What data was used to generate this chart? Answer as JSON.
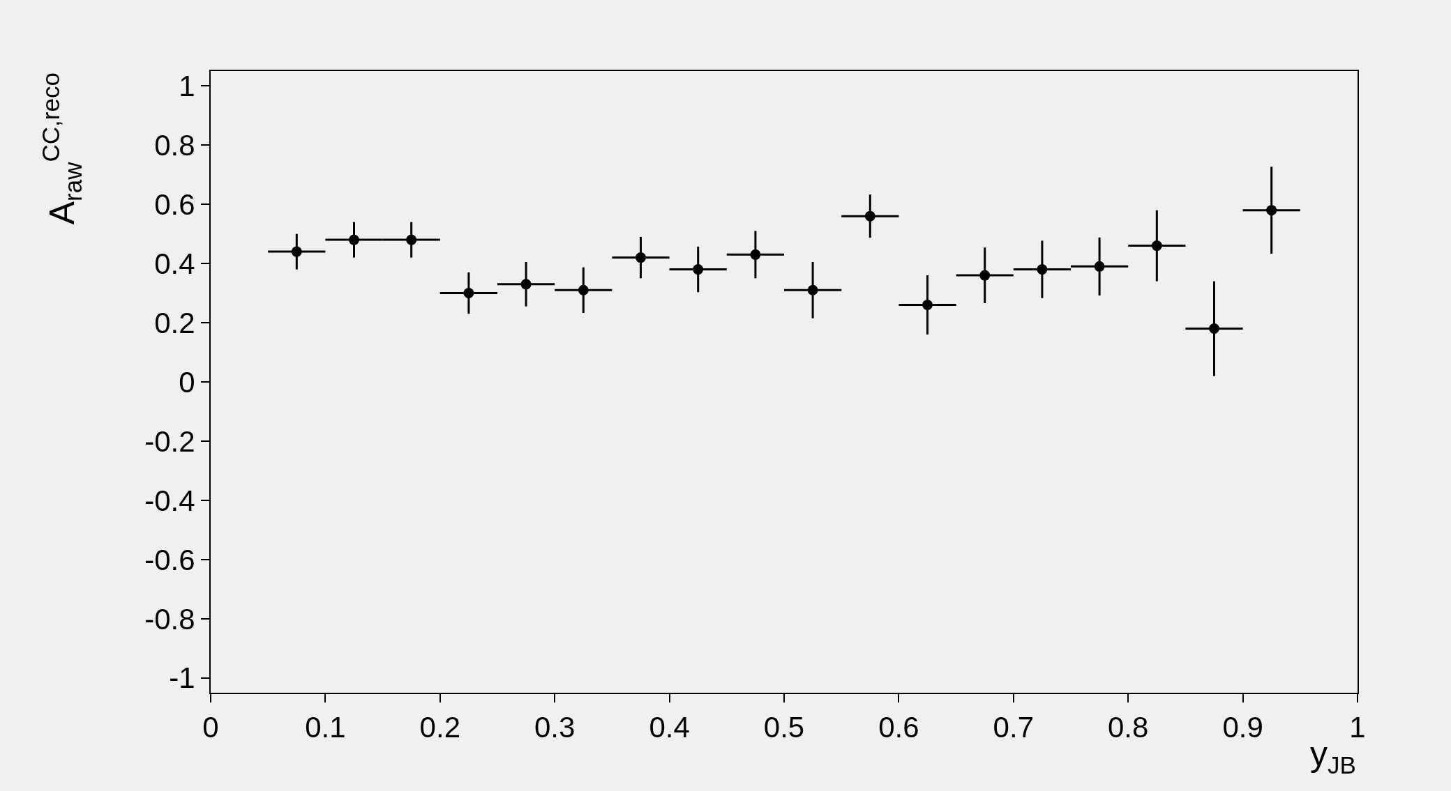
{
  "chart_data": {
    "type": "scatter",
    "xlabel": "y$_{JB}$",
    "ylabel": "A$_{raw}$$^{CC,reco}$",
    "x": [
      0.075,
      0.125,
      0.175,
      0.225,
      0.275,
      0.325,
      0.375,
      0.425,
      0.475,
      0.525,
      0.575,
      0.625,
      0.675,
      0.725,
      0.775,
      0.825,
      0.875,
      0.925
    ],
    "series": [
      {
        "color": "#000000",
        "values": [
          0.44,
          0.48,
          0.48,
          0.3,
          0.33,
          0.31,
          0.42,
          0.38,
          0.43,
          0.31,
          0.56,
          0.26,
          0.36,
          0.38,
          0.39,
          0.46,
          0.18,
          0.58
        ],
        "errors": [
          0.06,
          0.06,
          0.06,
          0.07,
          0.075,
          0.077,
          0.07,
          0.077,
          0.08,
          0.095,
          0.073,
          0.1,
          0.094,
          0.097,
          0.098,
          0.12,
          0.16,
          0.147
        ],
        "xerrors": [
          0.025,
          0.025,
          0.025,
          0.025,
          0.025,
          0.025,
          0.025,
          0.025,
          0.025,
          0.025,
          0.025,
          0.025,
          0.025,
          0.025,
          0.025,
          0.025,
          0.025,
          0.025
        ]
      }
    ],
    "marker": "circle",
    "xlim": [
      0,
      1
    ],
    "xticks": [
      0,
      0.1,
      0.2,
      0.3,
      0.4,
      0.5,
      0.6,
      0.7,
      0.8,
      0.9,
      1
    ],
    "ylim": [
      -1.05,
      1.05
    ],
    "yticks": [
      -1,
      -0.8,
      -0.6,
      -0.4,
      -0.2,
      0,
      0.2,
      0.4,
      0.6,
      0.8,
      1
    ],
    "grid": false
  }
}
